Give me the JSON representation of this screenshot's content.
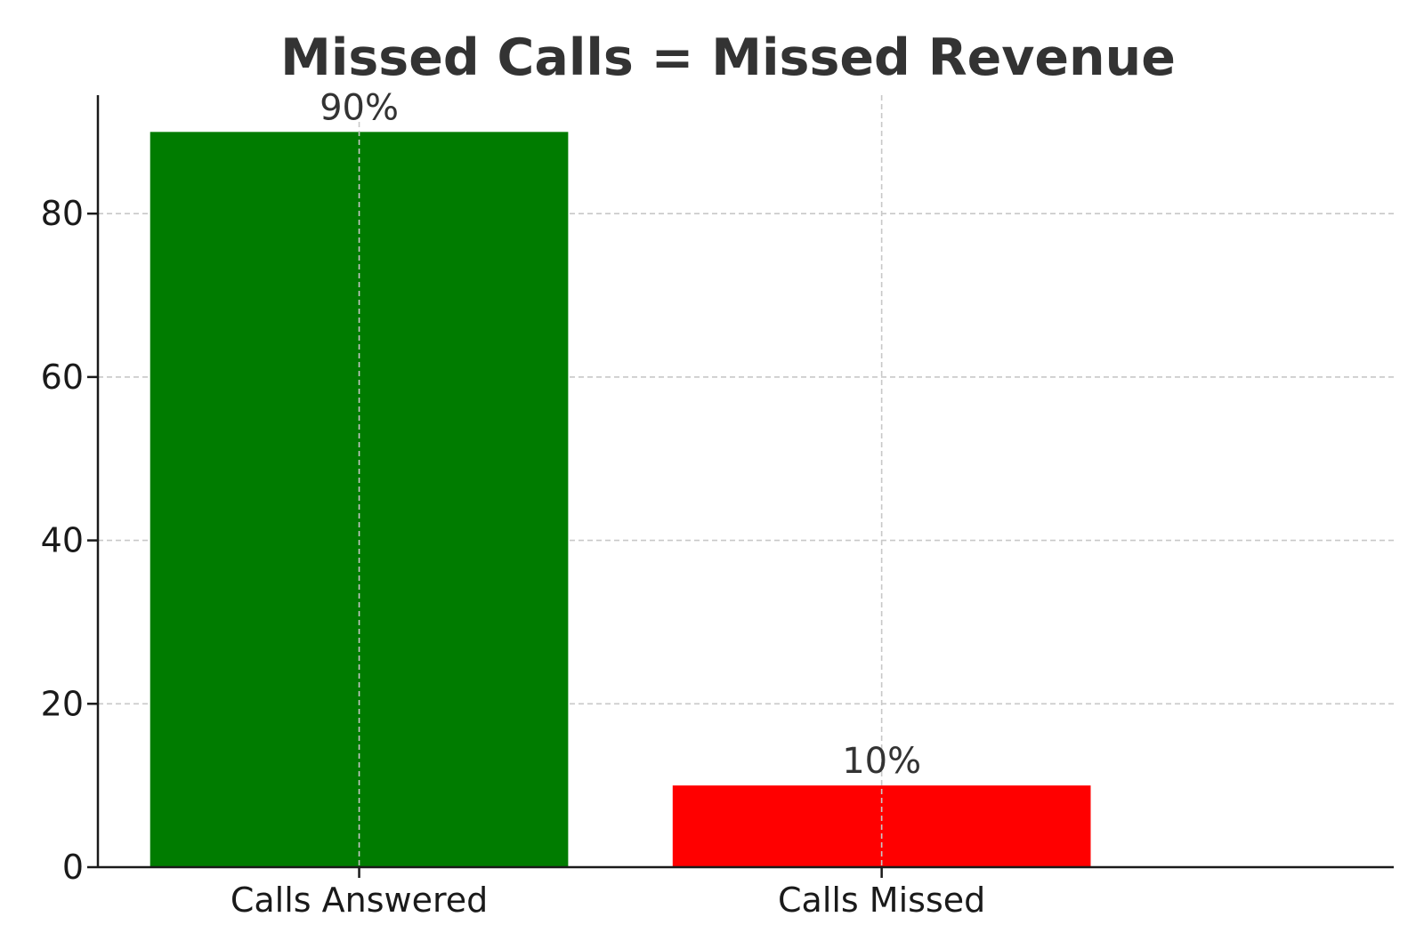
{
  "chart_data": {
    "type": "bar",
    "title": "Missed Calls = Missed Revenue",
    "xlabel": "",
    "ylabel": "",
    "categories": [
      "Calls Answered",
      "Calls Missed"
    ],
    "values": [
      90,
      10
    ],
    "value_labels": [
      "90%",
      "10%"
    ],
    "colors": [
      "#007c00",
      "#ff0000"
    ],
    "ylim": [
      0,
      94.5
    ],
    "yticks": [
      0,
      20,
      40,
      60,
      80
    ],
    "ytick_labels": [
      "0",
      "20",
      "40",
      "60",
      "80"
    ],
    "grid": true,
    "legend": "none"
  }
}
